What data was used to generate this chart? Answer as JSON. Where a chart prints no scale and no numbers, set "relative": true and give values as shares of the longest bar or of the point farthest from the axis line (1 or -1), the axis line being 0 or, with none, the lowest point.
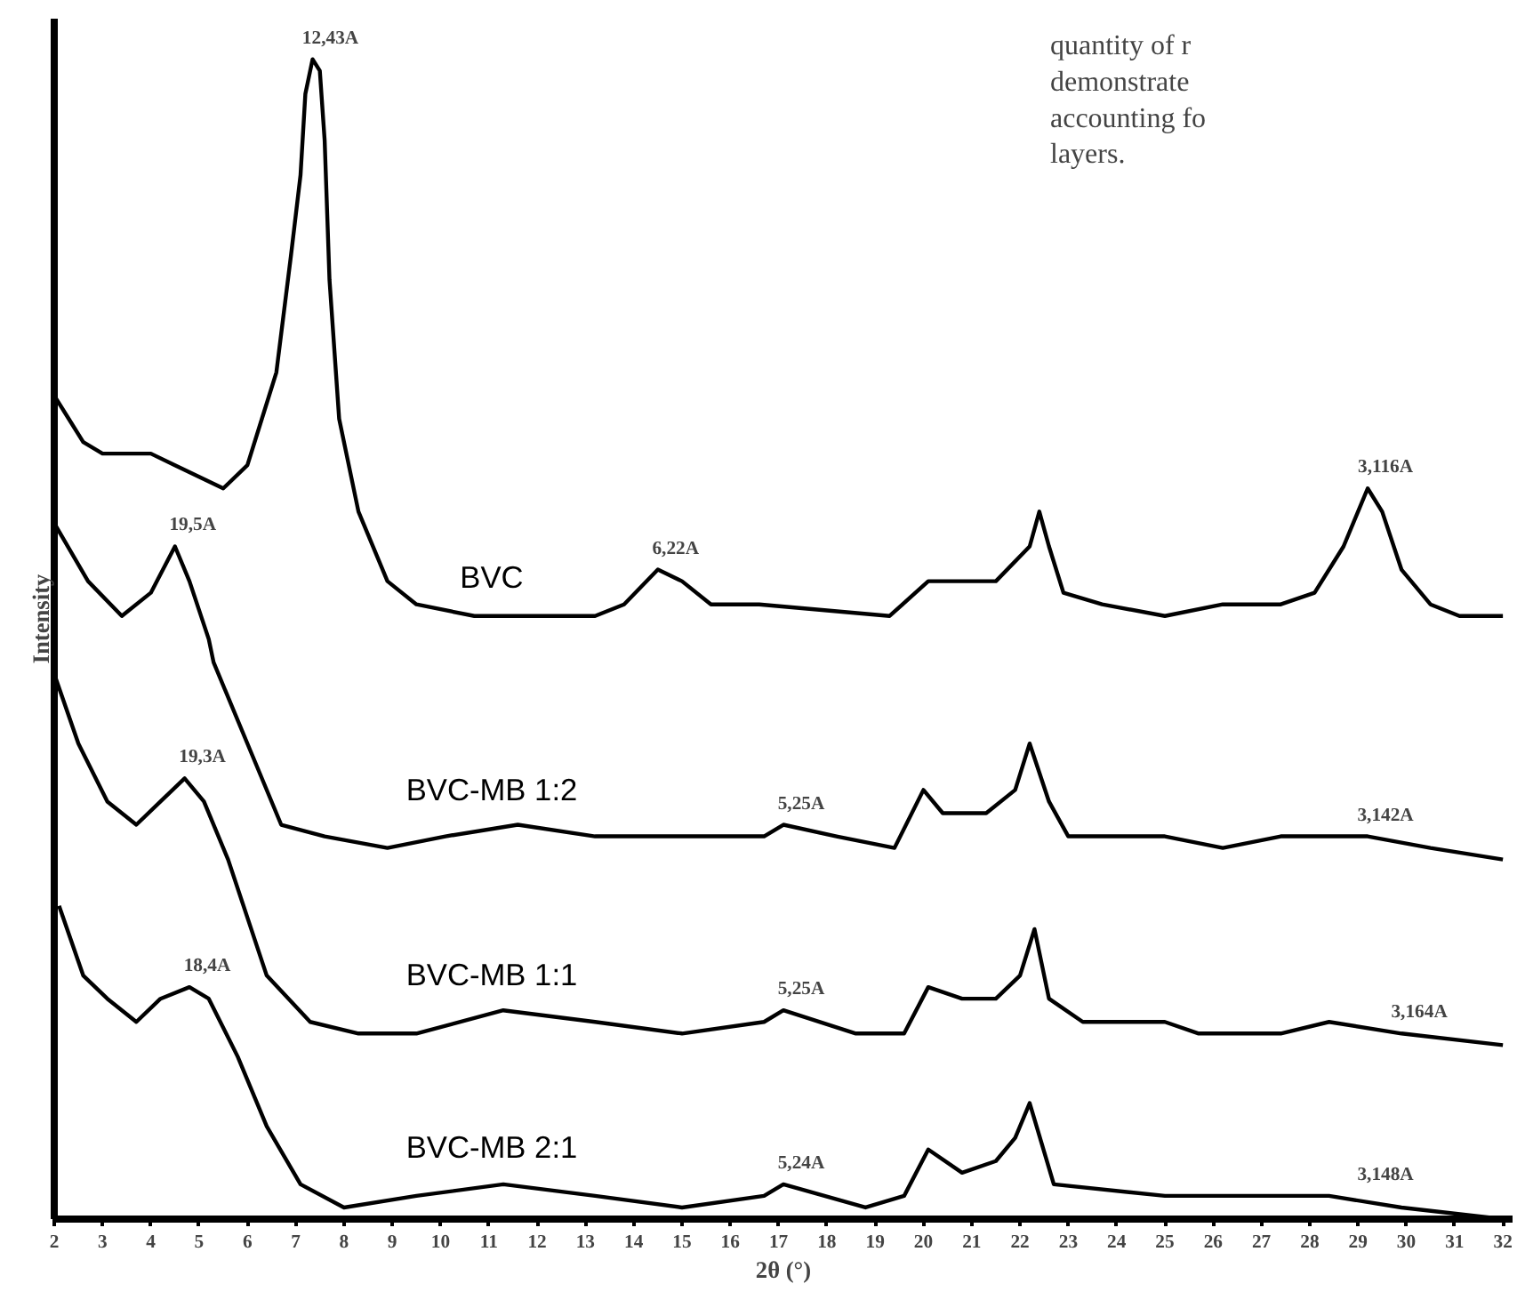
{
  "chart_data": {
    "type": "line",
    "relative": true,
    "xlabel": "2θ (°)",
    "ylabel": "Intensity",
    "xlim": [
      2,
      32.2
    ],
    "xticks": [
      2,
      3,
      4,
      5,
      6,
      7,
      8,
      9,
      10,
      11,
      12,
      13,
      14,
      15,
      16,
      17,
      18,
      19,
      20,
      21,
      22,
      23,
      24,
      25,
      26,
      27,
      28,
      29,
      30,
      31,
      32
    ],
    "grid": false,
    "series": [
      {
        "name": "BVC",
        "color": "#000000",
        "x": [
          2.0,
          2.3,
          2.6,
          3.0,
          3.5,
          4.0,
          4.5,
          5.0,
          5.5,
          6.0,
          6.3,
          6.6,
          6.9,
          7.1,
          7.2,
          7.35,
          7.5,
          7.6,
          7.7,
          7.9,
          8.3,
          8.9,
          9.5,
          10.7,
          12.0,
          13.2,
          13.8,
          14.5,
          15.0,
          15.6,
          16.6,
          19.3,
          20.1,
          20.7,
          21.5,
          22.2,
          22.4,
          22.6,
          22.9,
          23.7,
          25.0,
          26.2,
          27.4,
          28.1,
          28.7,
          29.0,
          29.2,
          29.5,
          29.9,
          30.5,
          31.1,
          32.0
        ],
        "values": [
          0.71,
          0.69,
          0.67,
          0.66,
          0.66,
          0.66,
          0.65,
          0.64,
          0.63,
          0.65,
          0.69,
          0.73,
          0.83,
          0.9,
          0.97,
          1.0,
          0.99,
          0.93,
          0.81,
          0.69,
          0.61,
          0.55,
          0.53,
          0.52,
          0.52,
          0.52,
          0.53,
          0.56,
          0.55,
          0.53,
          0.53,
          0.52,
          0.55,
          0.55,
          0.55,
          0.58,
          0.61,
          0.58,
          0.54,
          0.53,
          0.52,
          0.53,
          0.53,
          0.54,
          0.58,
          0.61,
          0.63,
          0.61,
          0.56,
          0.53,
          0.52,
          0.52
        ]
      },
      {
        "name": "BVC-MB 1:2",
        "color": "#000000",
        "x": [
          2.0,
          2.7,
          3.4,
          4.0,
          4.5,
          4.8,
          5.2,
          5.3,
          6.1,
          6.7,
          7.6,
          8.9,
          10.1,
          11.6,
          13.2,
          14.4,
          15.6,
          16.7,
          17.1,
          18.2,
          19.4,
          20.0,
          20.4,
          21.3,
          21.9,
          22.2,
          22.6,
          23.0,
          25.0,
          26.2,
          27.4,
          29.2,
          30.5,
          32.0
        ],
        "values": [
          0.6,
          0.55,
          0.52,
          0.54,
          0.58,
          0.55,
          0.5,
          0.48,
          0.4,
          0.34,
          0.33,
          0.32,
          0.33,
          0.34,
          0.33,
          0.33,
          0.33,
          0.33,
          0.34,
          0.33,
          0.32,
          0.37,
          0.35,
          0.35,
          0.37,
          0.41,
          0.36,
          0.33,
          0.33,
          0.32,
          0.33,
          0.33,
          0.32,
          0.31
        ]
      },
      {
        "name": "BVC-MB 1:1",
        "color": "#000000",
        "x": [
          2.0,
          2.5,
          3.1,
          3.7,
          4.2,
          4.7,
          5.1,
          5.6,
          6.0,
          6.4,
          7.3,
          8.3,
          9.5,
          11.3,
          13.2,
          15.0,
          16.7,
          17.1,
          18.6,
          19.6,
          20.1,
          20.8,
          21.5,
          22.0,
          22.3,
          22.6,
          23.3,
          25.0,
          25.7,
          27.4,
          28.4,
          29.9,
          32.0
        ],
        "values": [
          0.47,
          0.41,
          0.36,
          0.34,
          0.36,
          0.38,
          0.36,
          0.31,
          0.26,
          0.21,
          0.17,
          0.16,
          0.16,
          0.18,
          0.17,
          0.16,
          0.17,
          0.18,
          0.16,
          0.16,
          0.2,
          0.19,
          0.19,
          0.21,
          0.25,
          0.19,
          0.17,
          0.17,
          0.16,
          0.16,
          0.17,
          0.16,
          0.15
        ]
      },
      {
        "name": "BVC-MB 2:1",
        "color": "#000000",
        "x": [
          2.1,
          2.6,
          3.1,
          3.7,
          4.2,
          4.8,
          5.2,
          5.8,
          6.4,
          7.1,
          8.0,
          9.5,
          11.3,
          13.2,
          15.0,
          16.7,
          17.1,
          18.8,
          19.6,
          20.1,
          20.8,
          21.5,
          21.9,
          22.2,
          22.7,
          25.0,
          26.8,
          28.4,
          29.9,
          32.0
        ],
        "values": [
          0.27,
          0.21,
          0.19,
          0.17,
          0.19,
          0.2,
          0.19,
          0.14,
          0.08,
          0.03,
          0.01,
          0.02,
          0.03,
          0.02,
          0.01,
          0.02,
          0.03,
          0.01,
          0.02,
          0.06,
          0.04,
          0.05,
          0.07,
          0.1,
          0.03,
          0.02,
          0.02,
          0.02,
          0.01,
          0.0
        ]
      }
    ],
    "annotations": [
      {
        "text": "12,43A",
        "x": 7.35,
        "y": 1.0
      },
      {
        "text": "6,22A",
        "x": 14.5,
        "y": 0.56
      },
      {
        "text": "3,116A",
        "x": 29.2,
        "y": 0.63
      },
      {
        "text": "19,5A",
        "x": 4.5,
        "y": 0.58
      },
      {
        "text": "5,25A",
        "x": 17.1,
        "y": 0.34
      },
      {
        "text": "3,142A",
        "x": 29.2,
        "y": 0.33
      },
      {
        "text": "19,3A",
        "x": 4.7,
        "y": 0.38
      },
      {
        "text": "5,25A",
        "x": 17.1,
        "y": 0.18
      },
      {
        "text": "3,164A",
        "x": 29.9,
        "y": 0.16
      },
      {
        "text": "18,4A",
        "x": 4.8,
        "y": 0.2
      },
      {
        "text": "5,24A",
        "x": 17.1,
        "y": 0.03
      },
      {
        "text": "3,148A",
        "x": 29.2,
        "y": 0.02
      },
      "quantity of r\ndemonstrate\naccounting fo\nlayers."
    ]
  }
}
